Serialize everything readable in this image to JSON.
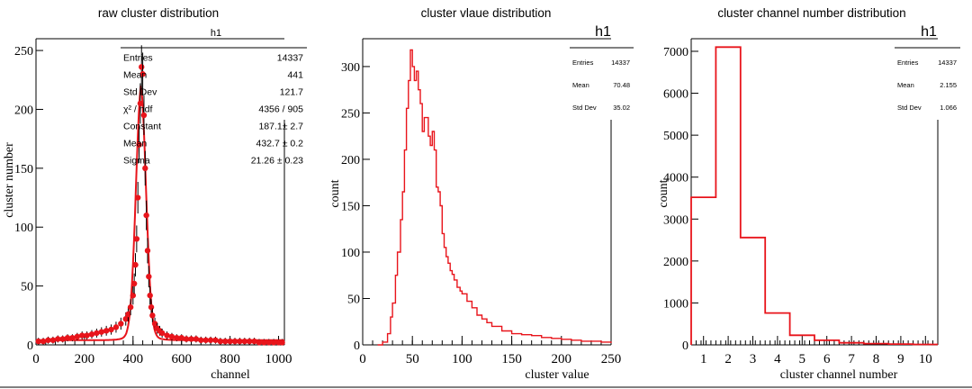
{
  "colors": {
    "data": "#e8141b",
    "axis": "#000000",
    "error": "#000000"
  },
  "chart_data": [
    {
      "type": "scatter",
      "title": "raw cluster distribution",
      "xlabel": "channel",
      "ylabel": "cluster number",
      "xlim": [
        0,
        1024
      ],
      "ylim": [
        0,
        260
      ],
      "xticks": [
        "0",
        "200",
        "400",
        "600",
        "800",
        "1000"
      ],
      "yticks": [
        "0",
        "50",
        "100",
        "150",
        "200",
        "250"
      ],
      "grid": false,
      "series_shape": "gaussian-peak-with-baseline",
      "peak": {
        "x": 432.7,
        "y": 236
      },
      "stats": {
        "title": "h1",
        "rows": [
          [
            "Entries",
            "14337"
          ],
          [
            "Mean",
            "441"
          ],
          [
            "Std Dev",
            "121.7"
          ],
          [
            "χ² / ndf",
            "4356 / 905"
          ],
          [
            "Constant",
            "187.1± 2.7"
          ],
          [
            "Mean",
            "432.7 ± 0.2"
          ],
          [
            "Sigma",
            "21.26 ± 0.23"
          ]
        ]
      },
      "x": [
        10,
        30,
        50,
        70,
        90,
        110,
        130,
        150,
        170,
        190,
        210,
        230,
        250,
        270,
        290,
        310,
        330,
        350,
        370,
        380,
        390,
        400,
        405,
        410,
        415,
        420,
        425,
        430,
        435,
        440,
        445,
        450,
        455,
        460,
        465,
        470,
        475,
        480,
        490,
        500,
        510,
        520,
        540,
        560,
        580,
        600,
        620,
        640,
        660,
        680,
        700,
        720,
        740,
        760,
        780,
        800,
        820,
        840,
        860,
        880,
        900,
        920,
        940,
        960,
        980,
        1000,
        1015
      ],
      "y": [
        3,
        3,
        4,
        4,
        5,
        5,
        6,
        6,
        7,
        8,
        8,
        9,
        10,
        11,
        12,
        13,
        15,
        18,
        22,
        26,
        32,
        42,
        52,
        68,
        90,
        125,
        170,
        205,
        236,
        230,
        195,
        150,
        110,
        80,
        58,
        42,
        32,
        25,
        18,
        14,
        12,
        10,
        8,
        7,
        6,
        6,
        5,
        5,
        5,
        4,
        4,
        4,
        4,
        3,
        3,
        3,
        3,
        3,
        3,
        3,
        3,
        2,
        2,
        2,
        2,
        2,
        2
      ]
    },
    {
      "type": "line",
      "title": "cluster vlaue distribution",
      "xlabel": "cluster value",
      "ylabel": "count",
      "xlim": [
        0,
        250
      ],
      "ylim": [
        0,
        330
      ],
      "xticks": [
        "0",
        "50",
        "100",
        "150",
        "200",
        "250"
      ],
      "yticks": [
        "0",
        "50",
        "100",
        "150",
        "200",
        "250",
        "300"
      ],
      "grid": false,
      "stats": {
        "title": "h1",
        "rows": [
          [
            "Entries",
            "14337"
          ],
          [
            "Mean",
            "70.48"
          ],
          [
            "Std Dev",
            "35.02"
          ]
        ]
      },
      "x": [
        15,
        20,
        25,
        28,
        30,
        33,
        35,
        38,
        40,
        42,
        44,
        46,
        48,
        50,
        52,
        54,
        56,
        58,
        60,
        62,
        64,
        66,
        68,
        70,
        72,
        74,
        76,
        78,
        80,
        82,
        84,
        86,
        88,
        90,
        92,
        95,
        98,
        100,
        105,
        110,
        115,
        120,
        125,
        130,
        140,
        150,
        160,
        170,
        180,
        190,
        200,
        210,
        220,
        230,
        240,
        250
      ],
      "y": [
        0,
        3,
        12,
        30,
        45,
        75,
        100,
        135,
        165,
        210,
        255,
        285,
        318,
        300,
        285,
        295,
        275,
        260,
        230,
        245,
        245,
        225,
        215,
        230,
        210,
        170,
        165,
        150,
        120,
        105,
        95,
        88,
        80,
        76,
        70,
        62,
        58,
        55,
        47,
        40,
        32,
        28,
        24,
        20,
        15,
        12,
        11,
        10,
        8,
        7,
        6,
        5,
        4,
        4,
        3,
        2
      ]
    },
    {
      "type": "bar",
      "title": "cluster channel number distribution",
      "xlabel": "cluster channel number",
      "ylabel": "count",
      "xlim": [
        0.5,
        10.5
      ],
      "ylim": [
        0,
        7300
      ],
      "xticks": [
        "1",
        "2",
        "3",
        "4",
        "5",
        "6",
        "7",
        "8",
        "9",
        "10"
      ],
      "yticks": [
        "0",
        "1000",
        "2000",
        "3000",
        "4000",
        "5000",
        "6000",
        "7000"
      ],
      "grid": false,
      "stats": {
        "title": "h1",
        "rows": [
          [
            "Entries",
            "14337"
          ],
          [
            "Mean",
            "2.155"
          ],
          [
            "Std Dev",
            "1.066"
          ]
        ]
      },
      "categories": [
        "1",
        "2",
        "3",
        "4",
        "5",
        "6",
        "7",
        "8",
        "9",
        "10"
      ],
      "values": [
        3520,
        7100,
        2560,
        760,
        230,
        110,
        50,
        30,
        20,
        10
      ]
    }
  ]
}
